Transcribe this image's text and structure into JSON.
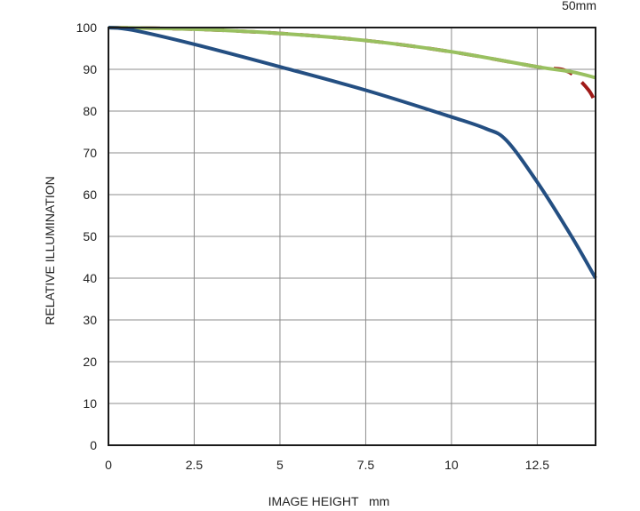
{
  "chart_data": {
    "type": "line",
    "title": "",
    "corner_label": "50mm",
    "xlabel": "IMAGE HEIGHT   mm",
    "ylabel": "RELATIVE ILLUMINATION",
    "xlim": [
      0,
      14.2
    ],
    "ylim": [
      0,
      100
    ],
    "xticks": [
      0,
      2.5,
      5,
      7.5,
      10,
      12.5
    ],
    "xtick_labels": [
      "0",
      "2.5",
      "5",
      "7.5",
      "10",
      "12.5"
    ],
    "yticks": [
      0,
      10,
      20,
      30,
      40,
      50,
      60,
      70,
      80,
      90,
      100
    ],
    "ytick_labels": [
      "0",
      "10",
      "20",
      "30",
      "40",
      "50",
      "60",
      "70",
      "80",
      "90",
      "100"
    ],
    "grid": true,
    "legend": "none",
    "series": [
      {
        "color": "#a01a18",
        "dash": "dashed",
        "x": [
          0,
          2.5,
          5,
          7.5,
          10,
          12.5,
          13.2,
          13.6,
          14.0,
          14.2
        ],
        "y": [
          100,
          99.6,
          98.6,
          96.9,
          94.2,
          90.6,
          90.0,
          88.4,
          85.0,
          82.0
        ]
      },
      {
        "color": "#99c060",
        "dash": "solid",
        "x": [
          0,
          2.5,
          5,
          7.5,
          10,
          12.5,
          13.5,
          14.2
        ],
        "y": [
          100,
          99.6,
          98.6,
          96.9,
          94.2,
          90.6,
          89.4,
          88.0
        ]
      },
      {
        "color": "#244f82",
        "dash": "solid",
        "x": [
          0,
          0.7,
          2.5,
          5,
          7.5,
          10,
          11,
          11.6,
          12.5,
          13.5,
          14.2
        ],
        "y": [
          100,
          99.4,
          96.0,
          90.6,
          85.0,
          78.6,
          75.8,
          73.0,
          63.0,
          50.0,
          40.0
        ]
      }
    ]
  }
}
